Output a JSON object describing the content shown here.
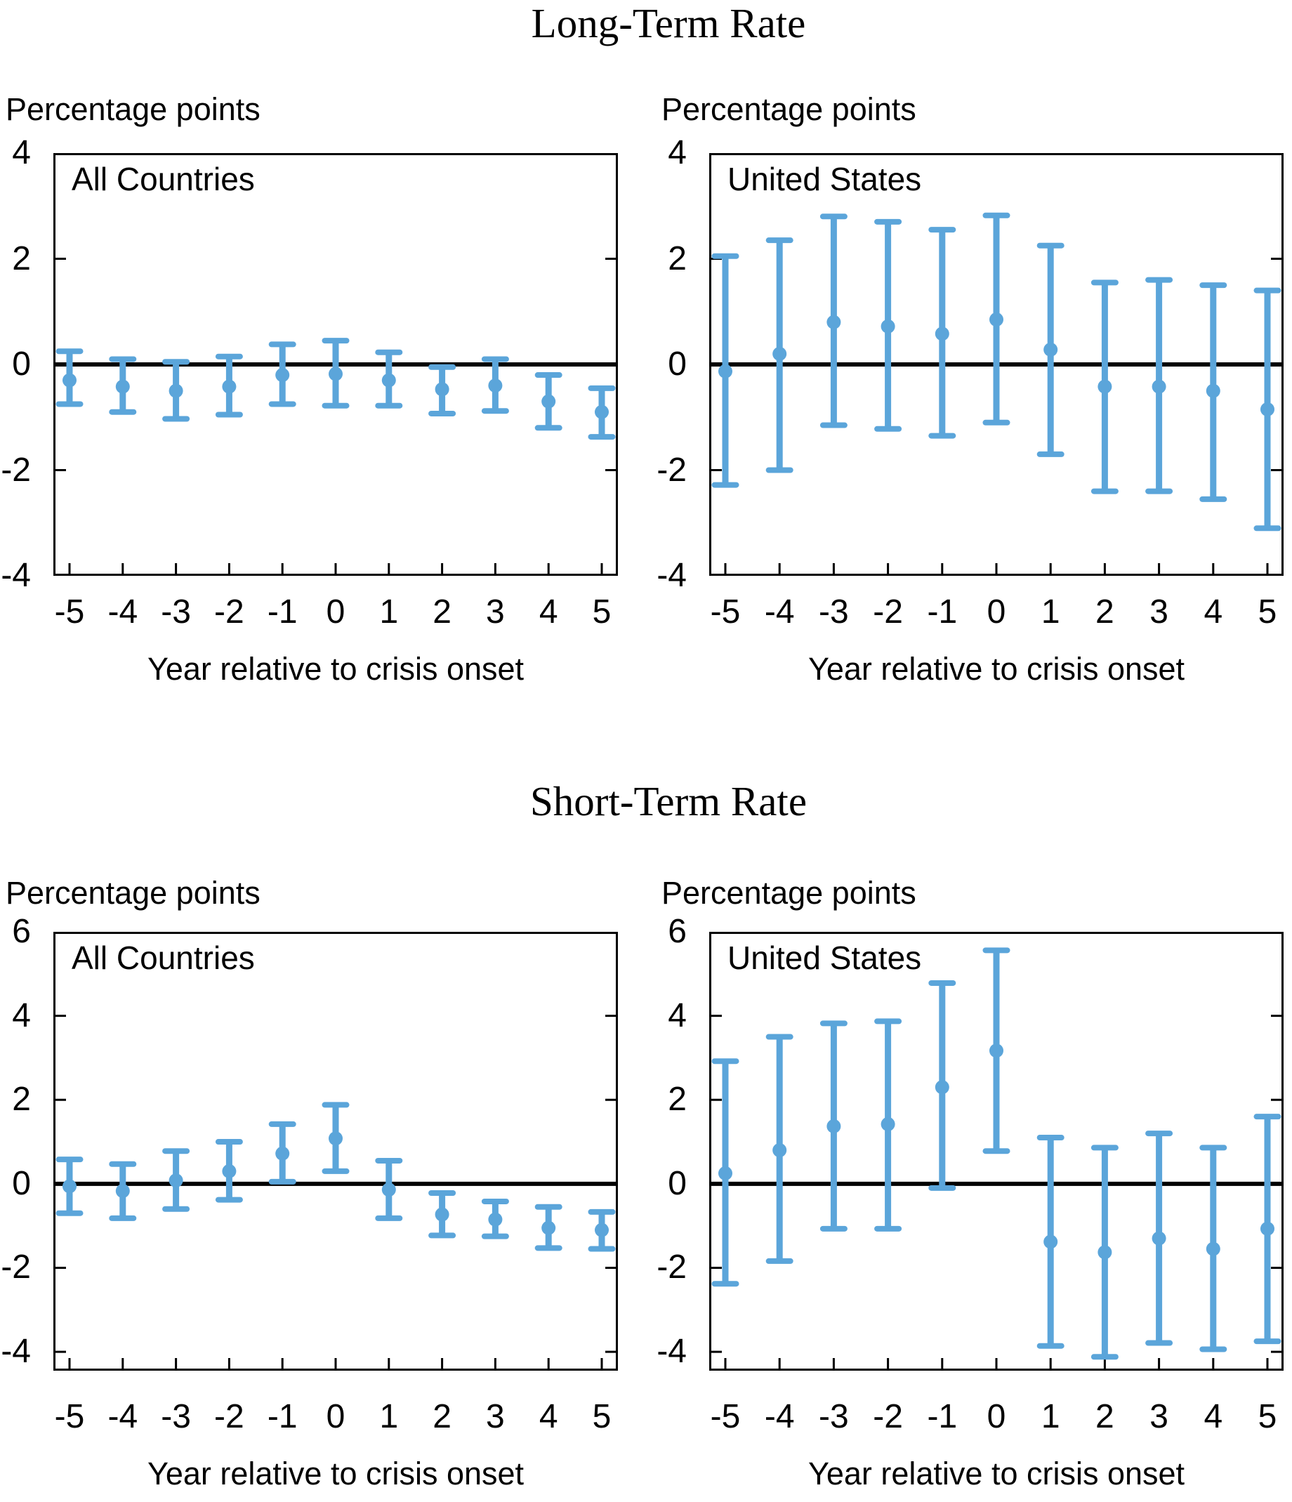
{
  "figure_description": "Error-bar panels of interest-rate behavior around financial crisis onset",
  "accent_color": "#5BA5DA",
  "axis_color": "#000000",
  "chart_data": [
    {
      "type": "scatter",
      "subtype": "errorbar",
      "title": "Long-Term Rate",
      "xlabel": "Year relative to crisis onset",
      "ylabel": "Percentage points",
      "x": [
        -5,
        -4,
        -3,
        -2,
        -1,
        0,
        1,
        2,
        3,
        4,
        5
      ],
      "ylim": [
        -4,
        4
      ],
      "yticks": [
        4,
        2,
        0,
        -2,
        -4
      ],
      "grid": false,
      "zero_line": true,
      "panels": [
        {
          "label": "All Countries",
          "values": [
            -0.3,
            -0.42,
            -0.5,
            -0.42,
            -0.2,
            -0.18,
            -0.3,
            -0.47,
            -0.4,
            -0.7,
            -0.9
          ],
          "ci_high": [
            0.25,
            0.1,
            0.05,
            0.15,
            0.38,
            0.45,
            0.23,
            -0.05,
            0.1,
            -0.2,
            -0.45
          ],
          "ci_low": [
            -0.75,
            -0.9,
            -1.03,
            -0.95,
            -0.75,
            -0.78,
            -0.78,
            -0.93,
            -0.88,
            -1.2,
            -1.37
          ]
        },
        {
          "label": "United States",
          "values": [
            -0.13,
            0.2,
            0.8,
            0.72,
            0.58,
            0.85,
            0.28,
            -0.42,
            -0.42,
            -0.5,
            -0.85
          ],
          "ci_high": [
            2.05,
            2.35,
            2.8,
            2.7,
            2.55,
            2.82,
            2.25,
            1.55,
            1.6,
            1.5,
            1.4
          ],
          "ci_low": [
            -2.28,
            -2.0,
            -1.15,
            -1.22,
            -1.35,
            -1.1,
            -1.7,
            -2.4,
            -2.4,
            -2.55,
            -3.1
          ]
        }
      ]
    },
    {
      "type": "scatter",
      "subtype": "errorbar",
      "title": "Short-Term Rate",
      "xlabel": "Year relative to crisis onset",
      "ylabel": "Percentage points",
      "x": [
        -5,
        -4,
        -3,
        -2,
        -1,
        0,
        1,
        2,
        3,
        4,
        5
      ],
      "ylim": [
        -4.45,
        6
      ],
      "yticks": [
        6,
        4,
        2,
        0,
        -2,
        -4
      ],
      "grid": false,
      "zero_line": true,
      "panels": [
        {
          "label": "All Countries",
          "values": [
            -0.06,
            -0.17,
            0.08,
            0.3,
            0.72,
            1.08,
            -0.14,
            -0.73,
            -0.85,
            -1.05,
            -1.1
          ],
          "ci_high": [
            0.58,
            0.47,
            0.78,
            1.0,
            1.42,
            1.88,
            0.55,
            -0.22,
            -0.42,
            -0.55,
            -0.67
          ],
          "ci_low": [
            -0.7,
            -0.82,
            -0.6,
            -0.38,
            0.05,
            0.3,
            -0.82,
            -1.23,
            -1.25,
            -1.53,
            -1.55
          ]
        },
        {
          "label": "United States",
          "values": [
            0.25,
            0.8,
            1.37,
            1.42,
            2.3,
            3.17,
            -1.38,
            -1.63,
            -1.3,
            -1.55,
            -1.07
          ],
          "ci_high": [
            2.92,
            3.5,
            3.82,
            3.87,
            4.78,
            5.56,
            1.1,
            0.86,
            1.2,
            0.86,
            1.6
          ],
          "ci_low": [
            -2.38,
            -1.84,
            -1.07,
            -1.07,
            -0.1,
            0.78,
            -3.86,
            -4.12,
            -3.79,
            -3.94,
            -3.75
          ]
        }
      ]
    }
  ]
}
